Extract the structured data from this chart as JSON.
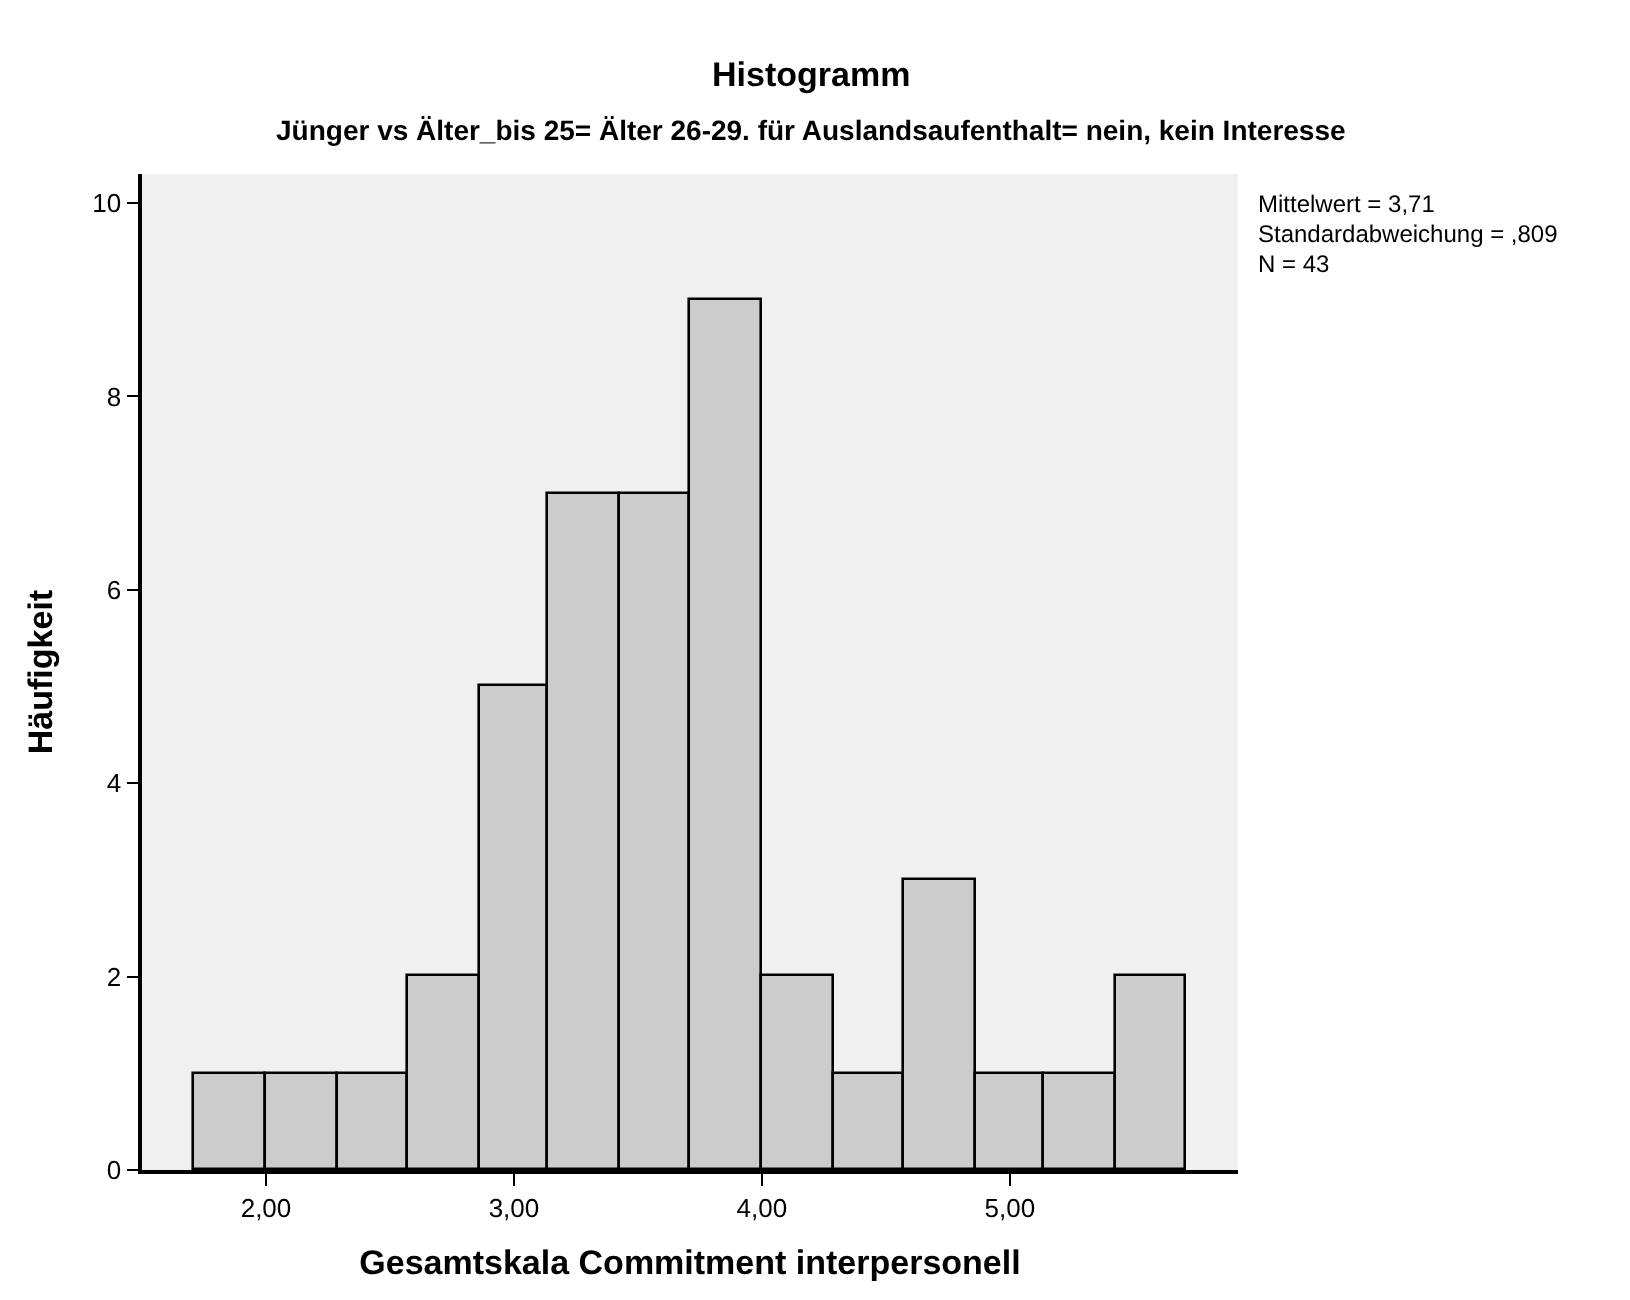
{
  "chart_data": {
    "type": "histogram",
    "title": "Histogramm",
    "subtitle": "Jünger vs Älter_bis 25= Älter 26-29. für Auslandsaufenthalt= nein, kein Interesse",
    "xlabel": "Gesamtskala Commitment interpersonell",
    "ylabel": "Häufigkeit",
    "bins": [
      1.71,
      2.0,
      2.29,
      2.57,
      2.86,
      3.14,
      3.43,
      3.71,
      4.0,
      4.29,
      4.57,
      4.86,
      5.14,
      5.43,
      5.71
    ],
    "values": [
      1,
      1,
      1,
      2,
      5,
      7,
      7,
      9,
      2,
      1,
      3,
      1,
      1,
      2
    ],
    "color": "#cccccc",
    "xlim": [
      1.5,
      5.92
    ],
    "xticks": [
      {
        "value": 2,
        "label": "2,00"
      },
      {
        "value": 3,
        "label": "3,00"
      },
      {
        "value": 4,
        "label": "4,00"
      },
      {
        "value": 5,
        "label": "5,00"
      }
    ],
    "ylim": [
      0,
      10.3
    ],
    "yticks": [
      0,
      2,
      4,
      6,
      8,
      10
    ],
    "grid": false,
    "annotations": [
      "Mittelwert = 3,71",
      "Standardabweichung = ,809",
      "N = 43"
    ]
  }
}
